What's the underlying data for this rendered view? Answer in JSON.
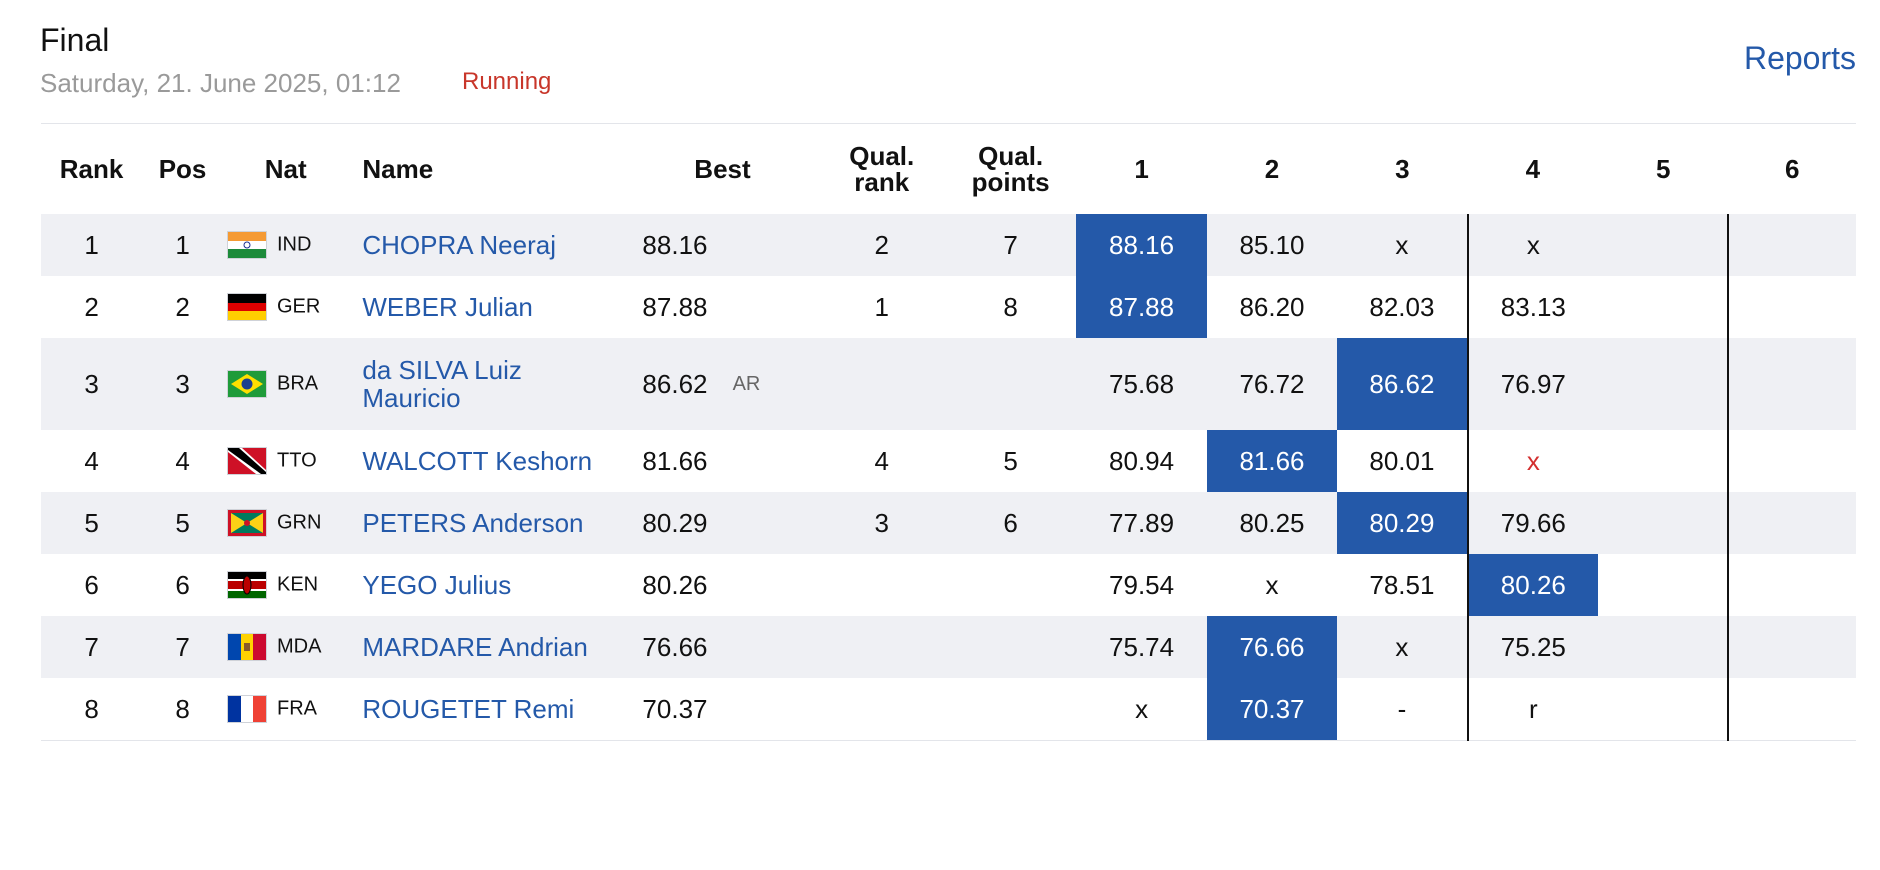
{
  "header": {
    "title": "Final",
    "datetime": "Saturday, 21. June 2025, 01:12",
    "status": "Running",
    "reports_label": "Reports"
  },
  "table": {
    "columns": [
      "Rank",
      "Pos",
      "Nat",
      "Name",
      "Best",
      "",
      "Qual.",
      "rank",
      "Qual.",
      "points",
      "1",
      "2",
      "3",
      "4",
      "5",
      "6"
    ],
    "rows": [
      {
        "rank": "1",
        "pos": "1",
        "nat": "IND",
        "name": "CHOPRA Neeraj",
        "best": "88.16",
        "record": "",
        "qual_rank": "2",
        "qual_points": "7",
        "a1": "88.16",
        "a2": "85.10",
        "a3": "x",
        "a4": "x",
        "a5": "",
        "a6": ""
      },
      {
        "rank": "2",
        "pos": "2",
        "nat": "GER",
        "name": "WEBER Julian",
        "best": "87.88",
        "record": "",
        "qual_rank": "1",
        "qual_points": "8",
        "a1": "87.88",
        "a2": "86.20",
        "a3": "82.03",
        "a4": "83.13",
        "a5": "",
        "a6": ""
      },
      {
        "rank": "3",
        "pos": "3",
        "nat": "BRA",
        "name": "da SILVA Luiz Mauricio",
        "best": "86.62",
        "record": "AR",
        "qual_rank": "",
        "qual_points": "",
        "a1": "75.68",
        "a2": "76.72",
        "a3": "86.62",
        "a4": "76.97",
        "a5": "",
        "a6": ""
      },
      {
        "rank": "4",
        "pos": "4",
        "nat": "TTO",
        "name": "WALCOTT Keshorn",
        "best": "81.66",
        "record": "",
        "qual_rank": "4",
        "qual_points": "5",
        "a1": "80.94",
        "a2": "81.66",
        "a3": "80.01",
        "a4": "x",
        "a5": "",
        "a6": ""
      },
      {
        "rank": "5",
        "pos": "5",
        "nat": "GRN",
        "name": "PETERS Anderson",
        "best": "80.29",
        "record": "",
        "qual_rank": "3",
        "qual_points": "6",
        "a1": "77.89",
        "a2": "80.25",
        "a3": "80.29",
        "a4": "79.66",
        "a5": "",
        "a6": ""
      },
      {
        "rank": "6",
        "pos": "6",
        "nat": "KEN",
        "name": "YEGO Julius",
        "best": "80.26",
        "record": "",
        "qual_rank": "",
        "qual_points": "",
        "a1": "79.54",
        "a2": "x",
        "a3": "78.51",
        "a4": "80.26",
        "a5": "",
        "a6": ""
      },
      {
        "rank": "7",
        "pos": "7",
        "nat": "MDA",
        "name": "MARDARE Andrian",
        "best": "76.66",
        "record": "",
        "qual_rank": "",
        "qual_points": "",
        "a1": "75.74",
        "a2": "76.66",
        "a3": "x",
        "a4": "75.25",
        "a5": "",
        "a6": ""
      },
      {
        "rank": "8",
        "pos": "8",
        "nat": "FRA",
        "name": "ROUGETET Remi",
        "best": "70.37",
        "record": "",
        "qual_rank": "",
        "qual_points": "",
        "a1": "x",
        "a2": "70.37",
        "a3": "-",
        "a4": "r",
        "a5": "",
        "a6": ""
      }
    ]
  },
  "colors": {
    "accent": "#2459a9",
    "status": "#c8362a",
    "row_stripe": "#eff0f4",
    "foul_red": "#d32f2f"
  }
}
